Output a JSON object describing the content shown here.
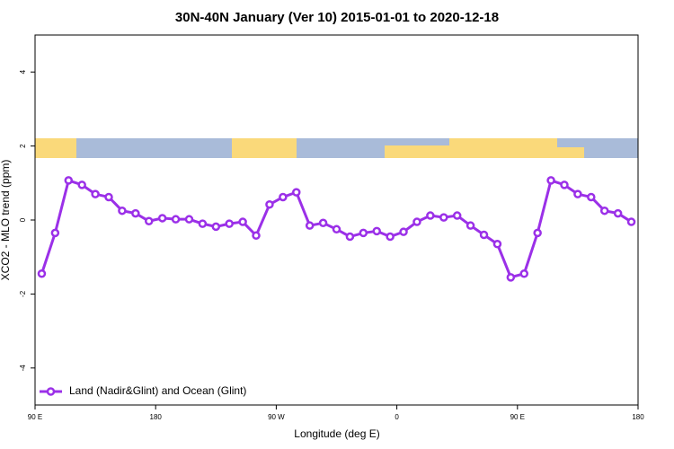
{
  "chart_data": {
    "type": "line",
    "title": "30N-40N January (Ver 10)   2015-01-01 to 2020-12-18",
    "x_label": "Longitude (deg E)",
    "y_label": "XCO2 - MLO trend (ppm)",
    "x": [
      95,
      105,
      115,
      125,
      135,
      145,
      155,
      165,
      175,
      185,
      195,
      205,
      215,
      225,
      235,
      245,
      255,
      265,
      275,
      285,
      295,
      305,
      315,
      325,
      335,
      345,
      355,
      365,
      375,
      385,
      395,
      405,
      415,
      425,
      435,
      445,
      455,
      465,
      475,
      485,
      495,
      505,
      515,
      525,
      535
    ],
    "series": [
      {
        "name": "Land (Nadir&Glint) and Ocean (Glint)",
        "color": "#9b30e8",
        "values": [
          -1.45,
          -0.35,
          1.07,
          0.95,
          0.7,
          0.62,
          0.25,
          0.18,
          -0.03,
          0.05,
          0.02,
          0.02,
          -0.1,
          -0.18,
          -0.1,
          -0.05,
          -0.42,
          0.42,
          0.62,
          0.75,
          -0.15,
          -0.08,
          -0.25,
          -0.45,
          -0.35,
          -0.3,
          -0.45,
          -0.32,
          -0.05,
          0.12,
          0.07,
          0.12,
          -0.15,
          -0.4,
          -0.65,
          -1.55,
          -1.45,
          -0.35,
          1.07,
          0.95,
          0.7,
          0.62,
          0.25,
          0.18,
          -0.05
        ]
      }
    ],
    "xlim": [
      90,
      540
    ],
    "xticks": [
      {
        "value": 90,
        "label": "90 E"
      },
      180,
      {
        "value": 270,
        "label": "90 W"
      },
      0,
      {
        "value": 450,
        "label": "90 E"
      },
      {
        "value": 540,
        "label": "180"
      }
    ],
    "ylim": [
      -5,
      5
    ],
    "yticks": [
      -4,
      -2,
      0,
      2,
      4
    ],
    "legend": "bottom-left"
  }
}
